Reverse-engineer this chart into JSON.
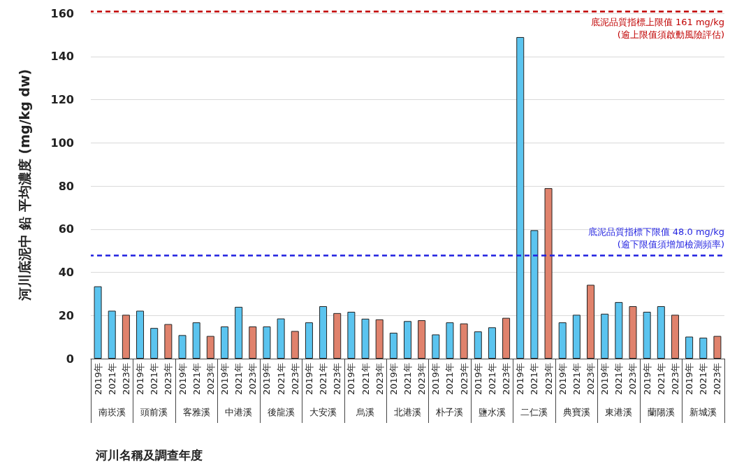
{
  "chart_data": {
    "type": "bar",
    "ylabel": "河川底泥中 鉛 平均濃度 (mg/kg dw)",
    "xlabel": "河川名稱及調查年度",
    "categories": [
      "2019年",
      "2021年",
      "2023年",
      "2019年",
      "2021年",
      "2023年",
      "2019年",
      "2021年",
      "2023年",
      "2019年",
      "2021年",
      "2023年",
      "2019年",
      "2021年",
      "2023年",
      "2019年",
      "2021年",
      "2023年",
      "2019年",
      "2021年",
      "2023年",
      "2019年",
      "2021年",
      "2023年",
      "2019年",
      "2021年",
      "2023年",
      "2019年",
      "2021年",
      "2023年",
      "2019年",
      "2021年",
      "2023年",
      "2019年",
      "2021年",
      "2023年",
      "2019年",
      "2021年",
      "2023年",
      "2019年",
      "2021年",
      "2023年",
      "2019年",
      "2021年",
      "2023年"
    ],
    "values": [
      33.5,
      22.2,
      20.3,
      22.2,
      14.2,
      16.0,
      10.9,
      16.8,
      10.5,
      14.9,
      24.0,
      14.9,
      14.9,
      18.6,
      12.8,
      16.8,
      24.3,
      21.1,
      21.7,
      18.5,
      18.2,
      12.0,
      17.4,
      17.8,
      11.2,
      16.8,
      16.3,
      12.6,
      14.5,
      18.9,
      149,
      59.5,
      79,
      16.8,
      20.3,
      34.2,
      20.8,
      26.2,
      24.3,
      21.7,
      24.3,
      20.3,
      10.2,
      9.7,
      10.5
    ],
    "colors": [
      "#5bc4ef",
      "#5bc4ef",
      "#e0826c",
      "#5bc4ef",
      "#5bc4ef",
      "#e0826c",
      "#5bc4ef",
      "#5bc4ef",
      "#e0826c",
      "#5bc4ef",
      "#5bc4ef",
      "#e0826c",
      "#5bc4ef",
      "#5bc4ef",
      "#e0826c",
      "#5bc4ef",
      "#5bc4ef",
      "#e0826c",
      "#5bc4ef",
      "#5bc4ef",
      "#e0826c",
      "#5bc4ef",
      "#5bc4ef",
      "#e0826c",
      "#5bc4ef",
      "#5bc4ef",
      "#e0826c",
      "#5bc4ef",
      "#5bc4ef",
      "#e0826c",
      "#5bc4ef",
      "#5bc4ef",
      "#e0826c",
      "#5bc4ef",
      "#5bc4ef",
      "#e0826c",
      "#5bc4ef",
      "#5bc4ef",
      "#e0826c",
      "#5bc4ef",
      "#5bc4ef",
      "#e0826c",
      "#5bc4ef",
      "#5bc4ef",
      "#e0826c"
    ],
    "annotations": [
      "南崁溪",
      "頭前溪",
      "客雅溪",
      "中港溪",
      "後龍溪",
      "大安溪",
      "烏溪",
      "北港溪",
      "朴子溪",
      "鹽水溪",
      "二仁溪",
      "典寶溪",
      "東港溪",
      "蘭陽溪",
      "新城溪"
    ],
    "ylim": [
      0,
      161
    ],
    "yticks": [
      0,
      20,
      40,
      60,
      80,
      100,
      120,
      140,
      160
    ],
    "grid": "y",
    "ref_lines": [
      {
        "axis": "y",
        "value": 161,
        "label": "底泥品質指標上限值 161 mg/kg\n(逾上限值須啟動風險評估)",
        "color": "#c00000",
        "line_style": "dashed"
      },
      {
        "axis": "y",
        "value": 48.0,
        "label": "底泥品質指標下限值 48.0 mg/kg\n(逾下限值須增加檢測頻率)",
        "color": "#1f1fe0",
        "line_style": "dashed"
      }
    ]
  }
}
